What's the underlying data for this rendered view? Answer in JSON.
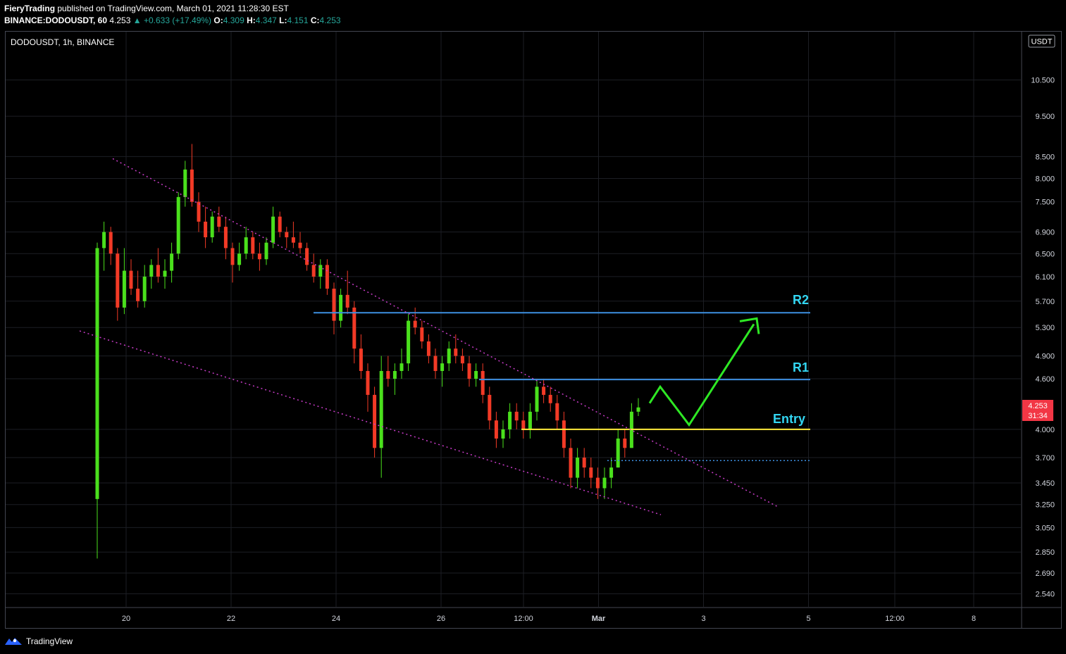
{
  "header": {
    "author": "FieryTrading",
    "published": "published on TradingView.com, March 01, 2021 11:28:30 EST",
    "symbol_interval": "BINANCE:DODOUSDT, 60",
    "last": "4.253",
    "change": "+0.633 (+17.49%)",
    "open_label": "O:",
    "open": "4.309",
    "high_label": "H:",
    "high": "4.347",
    "low_label": "L:",
    "low": "4.151",
    "close_label": "C:",
    "close": "4.253"
  },
  "chart_title": "DODOUSDT, 1h, BINANCE",
  "currency_button": "USDT",
  "price_tag": {
    "value": "4.253",
    "countdown": "31:34"
  },
  "footer": {
    "brand": "TradingView"
  },
  "annotations": {
    "r2": "R2",
    "r1": "R1",
    "entry": "Entry"
  },
  "colors": {
    "up": "#4ae01c",
    "down": "#f23a26",
    "resistance": "#3d8fe0",
    "entry": "#ffeb3b",
    "trend": "#c73cc7",
    "arrow": "#2ee824",
    "label": "#33d6f2",
    "price_tag": "#f23645"
  },
  "chart_data": {
    "type": "candlestick",
    "y_scale": "log",
    "ylim": [
      2.45,
      12.0
    ],
    "yticks": [
      "10.500",
      "9.500",
      "8.500",
      "8.000",
      "7.500",
      "6.900",
      "6.500",
      "6.100",
      "5.700",
      "5.300",
      "4.900",
      "4.600",
      "4.000",
      "3.700",
      "3.450",
      "3.250",
      "3.050",
      "2.850",
      "2.690",
      "2.540"
    ],
    "xticks": [
      "20",
      "22",
      "24",
      "26",
      "12:00",
      "Mar",
      "3",
      "5",
      "12:00",
      "8"
    ],
    "levels": [
      {
        "name": "R2",
        "value": 5.52
      },
      {
        "name": "R1",
        "value": 4.59
      },
      {
        "name": "Entry",
        "value": 4.0
      },
      {
        "name": "",
        "value": 3.67
      }
    ],
    "trendlines": [
      {
        "from": [
          "19 Feb 03:00",
          8.45
        ],
        "to": [
          "4 Mar 13:00",
          3.23
        ]
      },
      {
        "from": [
          "19 Feb 00:00",
          5.25
        ],
        "to": [
          "1 Mar 19:00",
          3.16
        ]
      }
    ],
    "projection": [
      [
        "1 Mar 15:00",
        4.3
      ],
      [
        "1 Mar 23:00",
        4.5
      ],
      [
        "2 Mar 20:00",
        4.05
      ],
      [
        "4 Mar 07:00",
        5.35
      ]
    ],
    "candles_ohlc": [
      [
        3.3,
        6.7,
        2.8,
        6.6
      ],
      [
        6.6,
        7.1,
        6.2,
        6.9
      ],
      [
        6.9,
        7.0,
        6.3,
        6.5
      ],
      [
        6.5,
        6.6,
        5.4,
        5.6
      ],
      [
        5.6,
        6.6,
        5.5,
        6.2
      ],
      [
        6.2,
        6.4,
        5.8,
        5.9
      ],
      [
        5.9,
        6.2,
        5.6,
        5.7
      ],
      [
        5.7,
        6.3,
        5.6,
        6.1
      ],
      [
        6.1,
        6.4,
        5.9,
        6.3
      ],
      [
        6.3,
        6.6,
        6.0,
        6.1
      ],
      [
        6.1,
        6.4,
        5.9,
        6.2
      ],
      [
        6.2,
        6.7,
        6.0,
        6.5
      ],
      [
        6.5,
        7.7,
        6.4,
        7.6
      ],
      [
        7.6,
        8.4,
        7.4,
        8.2
      ],
      [
        8.2,
        8.8,
        7.4,
        7.5
      ],
      [
        7.5,
        7.7,
        6.9,
        7.1
      ],
      [
        7.1,
        7.4,
        6.6,
        6.8
      ],
      [
        6.8,
        7.3,
        6.7,
        7.2
      ],
      [
        7.2,
        7.4,
        6.9,
        7.0
      ],
      [
        7.0,
        7.2,
        6.4,
        6.6
      ],
      [
        6.6,
        6.7,
        6.0,
        6.3
      ],
      [
        6.3,
        6.7,
        6.2,
        6.5
      ],
      [
        6.5,
        7.0,
        6.4,
        6.8
      ],
      [
        6.8,
        6.9,
        6.4,
        6.5
      ],
      [
        6.5,
        6.7,
        6.2,
        6.4
      ],
      [
        6.4,
        6.8,
        6.3,
        6.7
      ],
      [
        6.7,
        7.4,
        6.6,
        7.2
      ],
      [
        7.2,
        7.3,
        6.8,
        6.9
      ],
      [
        6.9,
        7.0,
        6.6,
        6.8
      ],
      [
        6.8,
        7.1,
        6.6,
        6.7
      ],
      [
        6.7,
        6.9,
        6.5,
        6.6
      ],
      [
        6.6,
        6.7,
        6.2,
        6.3
      ],
      [
        6.3,
        6.5,
        6.0,
        6.1
      ],
      [
        6.1,
        6.4,
        5.9,
        6.3
      ],
      [
        6.3,
        6.4,
        5.8,
        5.9
      ],
      [
        5.9,
        6.0,
        5.2,
        5.4
      ],
      [
        5.4,
        5.9,
        5.3,
        5.8
      ],
      [
        5.8,
        6.2,
        5.5,
        5.6
      ],
      [
        5.6,
        5.7,
        4.8,
        5.0
      ],
      [
        5.0,
        5.2,
        4.6,
        4.7
      ],
      [
        4.7,
        4.8,
        4.2,
        4.4
      ],
      [
        4.4,
        4.5,
        3.7,
        3.8
      ],
      [
        3.8,
        4.9,
        3.5,
        4.7
      ],
      [
        4.7,
        4.9,
        4.5,
        4.6
      ],
      [
        4.6,
        4.8,
        4.4,
        4.7
      ],
      [
        4.7,
        5.0,
        4.6,
        4.8
      ],
      [
        4.8,
        5.5,
        4.7,
        5.4
      ],
      [
        5.4,
        5.6,
        5.2,
        5.3
      ],
      [
        5.3,
        5.4,
        5.0,
        5.1
      ],
      [
        5.1,
        5.2,
        4.8,
        4.9
      ],
      [
        4.9,
        5.0,
        4.6,
        4.7
      ],
      [
        4.7,
        4.9,
        4.5,
        4.8
      ],
      [
        4.8,
        5.1,
        4.7,
        5.0
      ],
      [
        5.0,
        5.2,
        4.8,
        4.9
      ],
      [
        4.9,
        5.0,
        4.7,
        4.8
      ],
      [
        4.8,
        4.9,
        4.5,
        4.6
      ],
      [
        4.6,
        4.8,
        4.5,
        4.7
      ],
      [
        4.7,
        4.8,
        4.3,
        4.4
      ],
      [
        4.4,
        4.5,
        4.0,
        4.1
      ],
      [
        4.1,
        4.2,
        3.8,
        3.9
      ],
      [
        3.9,
        4.1,
        3.8,
        4.0
      ],
      [
        4.0,
        4.3,
        3.9,
        4.2
      ],
      [
        4.2,
        4.3,
        4.0,
        4.1
      ],
      [
        4.1,
        4.2,
        3.9,
        4.0
      ],
      [
        4.0,
        4.3,
        3.9,
        4.2
      ],
      [
        4.2,
        4.6,
        4.1,
        4.5
      ],
      [
        4.5,
        4.6,
        4.3,
        4.4
      ],
      [
        4.4,
        4.5,
        4.2,
        4.3
      ],
      [
        4.3,
        4.4,
        4.0,
        4.1
      ],
      [
        4.1,
        4.2,
        3.7,
        3.8
      ],
      [
        3.8,
        3.9,
        3.4,
        3.5
      ],
      [
        3.5,
        3.8,
        3.4,
        3.7
      ],
      [
        3.7,
        3.8,
        3.5,
        3.6
      ],
      [
        3.6,
        3.7,
        3.4,
        3.5
      ],
      [
        3.5,
        3.6,
        3.3,
        3.4
      ],
      [
        3.4,
        3.6,
        3.3,
        3.5
      ],
      [
        3.5,
        3.7,
        3.4,
        3.6
      ],
      [
        3.6,
        4.0,
        3.6,
        3.9
      ],
      [
        3.9,
        4.0,
        3.7,
        3.8
      ],
      [
        3.8,
        4.3,
        3.8,
        4.2
      ],
      [
        4.2,
        4.36,
        4.15,
        4.25
      ]
    ]
  }
}
